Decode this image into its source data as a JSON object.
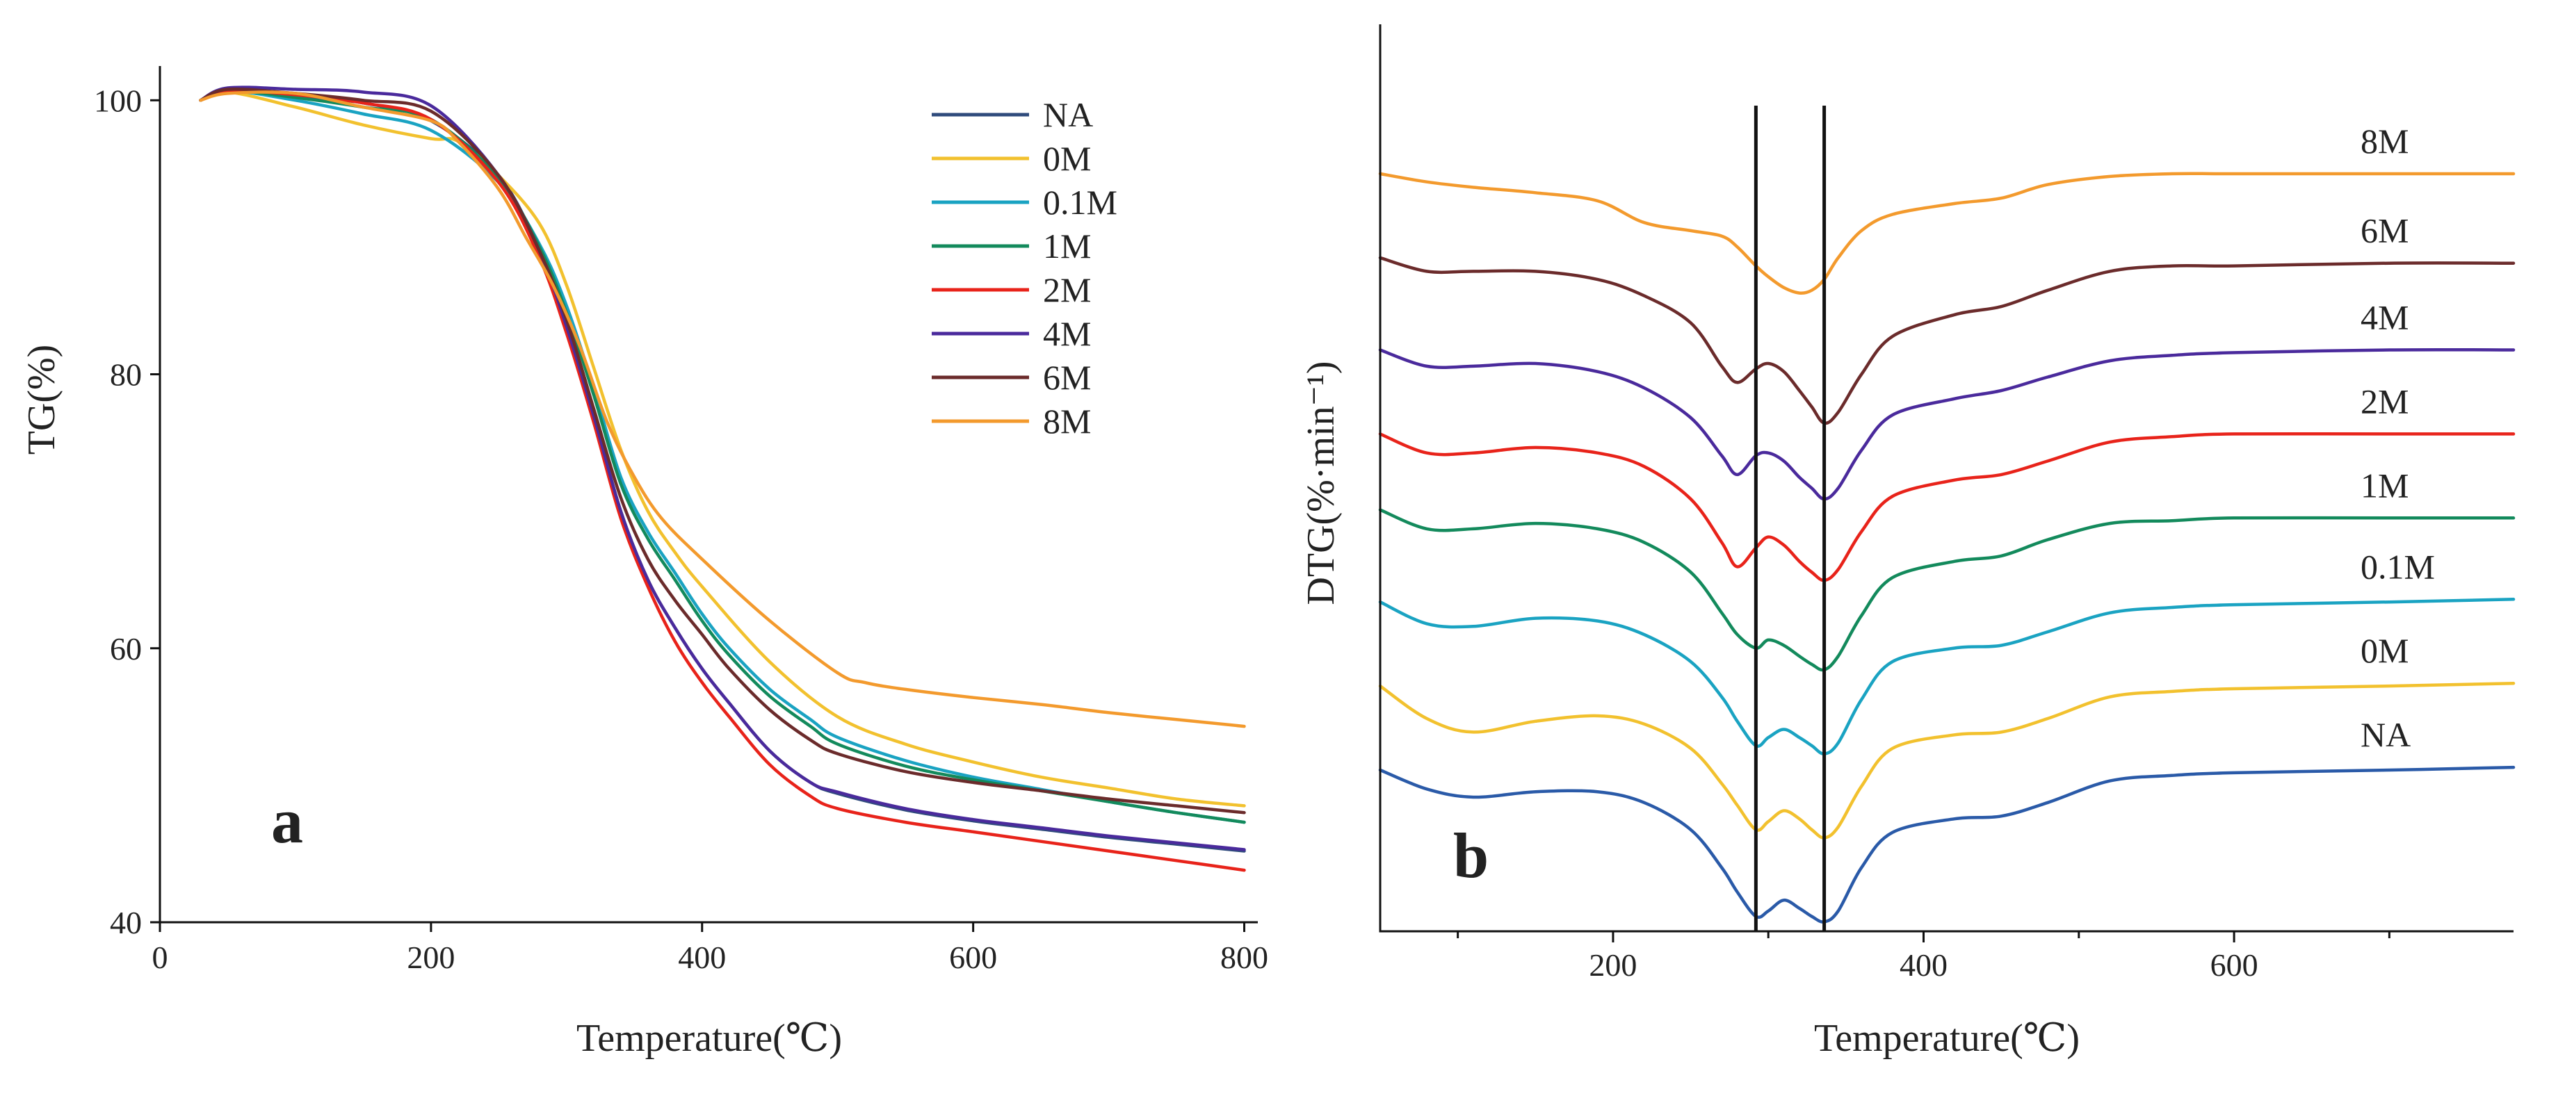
{
  "chart_data": [
    {
      "panel": "a",
      "type": "line",
      "title": "",
      "xlabel": "Temperature(℃)",
      "ylabel": "TG(%)",
      "xlim": [
        0,
        810
      ],
      "ylim": [
        40,
        102.5
      ],
      "xticks": [
        0,
        200,
        400,
        600,
        800
      ],
      "yticks": [
        40,
        60,
        80,
        100
      ],
      "grid": false,
      "legend_position": "top-right",
      "series": [
        {
          "name": "NA",
          "color": "#2f4b7c",
          "x": [
            30,
            50,
            100,
            150,
            200,
            250,
            280,
            300,
            320,
            340,
            360,
            380,
            400,
            420,
            450,
            480,
            500,
            550,
            600,
            650,
            700,
            750,
            800
          ],
          "y": [
            100,
            100.8,
            100.3,
            99.8,
            98.5,
            94.5,
            89,
            83.5,
            77,
            70,
            65,
            61.5,
            58.5,
            56,
            52.5,
            50.2,
            49.4,
            48.2,
            47.4,
            46.8,
            46.2,
            45.7,
            45.2
          ]
        },
        {
          "name": "0M",
          "color": "#f2c12e",
          "x": [
            30,
            50,
            100,
            150,
            200,
            220,
            250,
            280,
            300,
            320,
            340,
            360,
            380,
            400,
            450,
            500,
            550,
            600,
            650,
            700,
            750,
            800
          ],
          "y": [
            100,
            100.6,
            99.5,
            98.2,
            97.2,
            97,
            94.5,
            91,
            86.5,
            80.5,
            74.5,
            70,
            67,
            64.5,
            59,
            55,
            53,
            51.7,
            50.6,
            49.8,
            49,
            48.5
          ]
        },
        {
          "name": "0.1M",
          "color": "#1aa3c2",
          "x": [
            30,
            50,
            100,
            150,
            200,
            250,
            280,
            300,
            320,
            340,
            360,
            380,
            400,
            420,
            450,
            480,
            500,
            550,
            600,
            650,
            700,
            750,
            800
          ],
          "y": [
            100,
            100.7,
            100,
            99,
            97.8,
            94,
            89.5,
            85,
            79,
            72.5,
            68.5,
            65.5,
            62.5,
            60,
            57,
            54.8,
            53.5,
            51.8,
            50.6,
            49.7,
            48.8,
            48,
            47.3
          ]
        },
        {
          "name": "1M",
          "color": "#138a5c",
          "x": [
            30,
            50,
            100,
            150,
            200,
            250,
            280,
            300,
            320,
            340,
            360,
            380,
            400,
            420,
            450,
            480,
            500,
            550,
            600,
            650,
            700,
            750,
            800
          ],
          "y": [
            100,
            100.7,
            100.2,
            99.5,
            98.6,
            94.3,
            89.3,
            84.5,
            78.5,
            72,
            68,
            65,
            62,
            59.5,
            56.5,
            54.3,
            53,
            51.4,
            50.4,
            49.6,
            48.8,
            48,
            47.3
          ]
        },
        {
          "name": "2M",
          "color": "#e8231a",
          "x": [
            30,
            50,
            100,
            150,
            200,
            250,
            280,
            300,
            320,
            340,
            360,
            380,
            400,
            420,
            450,
            480,
            500,
            550,
            600,
            650,
            700,
            750,
            800
          ],
          "y": [
            100,
            100.7,
            100.4,
            99.8,
            98.6,
            94,
            88.5,
            83,
            76.5,
            69.5,
            64.5,
            60.5,
            57.5,
            55,
            51.5,
            49.2,
            48.3,
            47.3,
            46.6,
            45.9,
            45.2,
            44.5,
            43.8
          ]
        },
        {
          "name": "4M",
          "color": "#4a2a9c",
          "x": [
            30,
            50,
            100,
            150,
            200,
            250,
            280,
            300,
            320,
            340,
            360,
            380,
            400,
            420,
            450,
            480,
            500,
            550,
            600,
            650,
            700,
            750,
            800
          ],
          "y": [
            100,
            100.9,
            100.8,
            100.6,
            99.6,
            94.5,
            89,
            83.5,
            77,
            70,
            65,
            61.5,
            58.5,
            56,
            52.5,
            50.2,
            49.5,
            48.3,
            47.5,
            46.9,
            46.3,
            45.8,
            45.3
          ]
        },
        {
          "name": "6M",
          "color": "#6b2b2b",
          "x": [
            30,
            50,
            100,
            150,
            200,
            250,
            280,
            300,
            320,
            340,
            360,
            380,
            400,
            420,
            450,
            480,
            500,
            550,
            600,
            650,
            700,
            750,
            800
          ],
          "y": [
            100,
            100.8,
            100.5,
            100,
            99.2,
            94.5,
            89,
            84,
            77.5,
            71,
            66.5,
            63.5,
            61,
            58.5,
            55.5,
            53.3,
            52.3,
            51,
            50.2,
            49.6,
            49,
            48.5,
            48
          ]
        },
        {
          "name": "8M",
          "color": "#f39a2d",
          "x": [
            30,
            50,
            100,
            150,
            200,
            220,
            250,
            270,
            290,
            310,
            330,
            350,
            370,
            400,
            450,
            500,
            520,
            550,
            600,
            650,
            700,
            750,
            800
          ],
          "y": [
            100,
            100.5,
            100.5,
            99.5,
            98.5,
            97,
            93.5,
            90,
            86.5,
            82,
            76.5,
            72.5,
            69.5,
            66.5,
            62,
            58.2,
            57.5,
            57,
            56.4,
            55.9,
            55.3,
            54.8,
            54.3
          ]
        }
      ],
      "annotations": [
        "a"
      ]
    },
    {
      "panel": "b",
      "type": "line",
      "title": "",
      "xlabel": "Temperature(℃)",
      "ylabel": "DTG(%·min⁻¹)",
      "xlim": [
        50,
        780
      ],
      "xticks": [
        200,
        400,
        600
      ],
      "y_tick_labels": "none",
      "grid": false,
      "vertical_reference_lines_x": [
        292,
        336
      ],
      "series_offsets": {
        "NA": 0,
        "0M": 1,
        "0.1M": 2,
        "1M": 3,
        "2M": 4,
        "4M": 5,
        "6M": 6,
        "8M": 7
      },
      "series": [
        {
          "name": "NA",
          "color": "#2a5aa8",
          "x": [
            50,
            80,
            110,
            150,
            190,
            220,
            250,
            270,
            280,
            292,
            300,
            310,
            320,
            328,
            336,
            345,
            360,
            380,
            420,
            450,
            480,
            520,
            560,
            600,
            700,
            780
          ],
          "y": [
            3.0,
            2.3,
            2.0,
            2.2,
            2.2,
            1.8,
            0.8,
            -0.6,
            -1.5,
            -2.4,
            -2.2,
            -1.8,
            -2.1,
            -2.4,
            -2.6,
            -2.2,
            -0.6,
            0.7,
            1.2,
            1.3,
            1.8,
            2.6,
            2.8,
            2.9,
            3.0,
            3.1
          ]
        },
        {
          "name": "0M",
          "color": "#f2c12e",
          "x": [
            50,
            80,
            110,
            150,
            190,
            220,
            250,
            270,
            280,
            292,
            300,
            310,
            320,
            328,
            336,
            345,
            360,
            380,
            420,
            450,
            480,
            520,
            560,
            600,
            700,
            780
          ],
          "y": [
            3.0,
            1.8,
            1.3,
            1.7,
            1.9,
            1.6,
            0.7,
            -0.6,
            -1.4,
            -2.3,
            -2.0,
            -1.6,
            -1.9,
            -2.3,
            -2.6,
            -2.2,
            -0.7,
            0.7,
            1.2,
            1.3,
            1.8,
            2.6,
            2.8,
            2.9,
            3.0,
            3.1
          ]
        },
        {
          "name": "0.1M",
          "color": "#1aa3c2",
          "x": [
            50,
            80,
            110,
            150,
            190,
            220,
            250,
            270,
            280,
            292,
            300,
            310,
            320,
            328,
            336,
            345,
            360,
            380,
            420,
            450,
            480,
            520,
            560,
            600,
            700,
            780
          ],
          "y": [
            3.0,
            2.2,
            2.1,
            2.4,
            2.3,
            1.8,
            0.8,
            -0.5,
            -1.4,
            -2.3,
            -2.0,
            -1.7,
            -2.0,
            -2.3,
            -2.6,
            -2.2,
            -0.6,
            0.8,
            1.3,
            1.4,
            1.9,
            2.6,
            2.8,
            2.9,
            3.0,
            3.1
          ]
        },
        {
          "name": "1M",
          "color": "#138a5c",
          "x": [
            50,
            80,
            110,
            150,
            190,
            220,
            250,
            270,
            280,
            292,
            300,
            310,
            320,
            328,
            336,
            345,
            360,
            380,
            420,
            450,
            480,
            520,
            560,
            600,
            700,
            780
          ],
          "y": [
            3.3,
            2.6,
            2.6,
            2.8,
            2.6,
            2.1,
            1.0,
            -0.5,
            -1.3,
            -1.8,
            -1.5,
            -1.7,
            -2.1,
            -2.4,
            -2.6,
            -2.1,
            -0.6,
            0.8,
            1.4,
            1.6,
            2.2,
            2.8,
            2.9,
            3.0,
            3.0,
            3.0
          ]
        },
        {
          "name": "2M",
          "color": "#e8231a",
          "x": [
            50,
            80,
            110,
            150,
            190,
            220,
            250,
            270,
            280,
            292,
            300,
            310,
            320,
            328,
            336,
            345,
            360,
            380,
            420,
            450,
            480,
            520,
            560,
            600,
            700,
            780
          ],
          "y": [
            3.0,
            2.3,
            2.3,
            2.5,
            2.3,
            1.8,
            0.6,
            -1.0,
            -1.9,
            -1.2,
            -0.8,
            -1.1,
            -1.7,
            -2.1,
            -2.4,
            -2.0,
            -0.6,
            0.7,
            1.3,
            1.5,
            2.0,
            2.7,
            2.9,
            3.0,
            3.0,
            3.0
          ]
        },
        {
          "name": "4M",
          "color": "#4a2a9c",
          "x": [
            50,
            80,
            110,
            150,
            190,
            220,
            250,
            270,
            280,
            292,
            300,
            310,
            320,
            328,
            336,
            345,
            360,
            380,
            420,
            450,
            480,
            520,
            560,
            600,
            700,
            780
          ],
          "y": [
            3.0,
            2.4,
            2.4,
            2.5,
            2.2,
            1.6,
            0.5,
            -0.9,
            -1.6,
            -0.9,
            -0.8,
            -1.1,
            -1.7,
            -2.1,
            -2.5,
            -2.1,
            -0.7,
            0.6,
            1.2,
            1.5,
            2.0,
            2.6,
            2.8,
            2.9,
            3.0,
            3.0
          ]
        },
        {
          "name": "6M",
          "color": "#6b2b2b",
          "x": [
            50,
            80,
            110,
            150,
            190,
            220,
            250,
            270,
            280,
            292,
            300,
            310,
            320,
            328,
            336,
            345,
            360,
            380,
            420,
            450,
            480,
            520,
            560,
            600,
            700,
            780
          ],
          "y": [
            3.3,
            2.8,
            2.8,
            2.8,
            2.5,
            1.9,
            0.9,
            -0.7,
            -1.3,
            -0.8,
            -0.6,
            -0.9,
            -1.6,
            -2.2,
            -2.8,
            -2.4,
            -1.0,
            0.4,
            1.2,
            1.5,
            2.1,
            2.8,
            3.0,
            3.0,
            3.1,
            3.1
          ]
        },
        {
          "name": "8M",
          "color": "#f39a2d",
          "x": [
            50,
            80,
            110,
            150,
            190,
            220,
            250,
            270,
            280,
            292,
            300,
            310,
            320,
            328,
            336,
            345,
            360,
            380,
            420,
            450,
            480,
            520,
            560,
            600,
            700,
            780
          ],
          "y": [
            3.3,
            3.0,
            2.8,
            2.6,
            2.3,
            1.5,
            1.2,
            1.0,
            0.6,
            -0.1,
            -0.5,
            -0.9,
            -1.1,
            -1.0,
            -0.6,
            0.2,
            1.2,
            1.8,
            2.2,
            2.4,
            2.9,
            3.2,
            3.3,
            3.3,
            3.3,
            3.3
          ]
        }
      ],
      "annotations": [
        "b"
      ]
    }
  ]
}
